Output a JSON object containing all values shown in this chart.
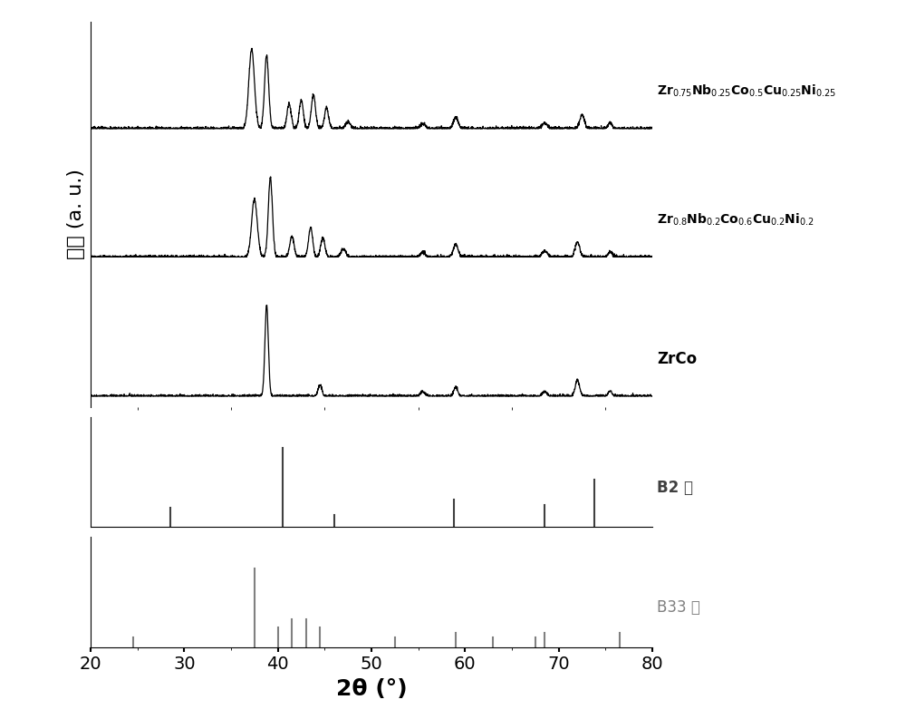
{
  "title": "",
  "xlabel": "2θ (°)",
  "ylabel": "峰强 (a. u.)",
  "xlim": [
    20,
    80
  ],
  "bg_color": "#ffffff",
  "line_color": "#000000",
  "b2_color": "#404040",
  "b33_color": "#808080",
  "labels": {
    "curve3": "Zr$_{0.75}$Nb$_{0.25}$Co$_{0.5}$Cu$_{0.25}$Ni$_{0.25}$",
    "curve2": "Zr$_{0.8}$Nb$_{0.2}$Co$_{0.6}$Cu$_{0.2}$Ni$_{0.2}$",
    "curve1": "ZrCo",
    "b2": "B2 相",
    "b33": "B33 相"
  },
  "b2_peaks": [
    28.5,
    40.5,
    46.0,
    58.8,
    68.5,
    73.8
  ],
  "b2_heights": [
    0.25,
    1.0,
    0.15,
    0.35,
    0.28,
    0.6
  ],
  "b33_peaks": [
    24.5,
    37.5,
    40.0,
    41.5,
    43.0,
    44.5,
    52.5,
    59.0,
    63.0,
    67.5,
    68.5,
    76.5
  ],
  "b33_heights": [
    0.12,
    1.0,
    0.25,
    0.35,
    0.35,
    0.25,
    0.12,
    0.18,
    0.12,
    0.12,
    0.18,
    0.18
  ]
}
